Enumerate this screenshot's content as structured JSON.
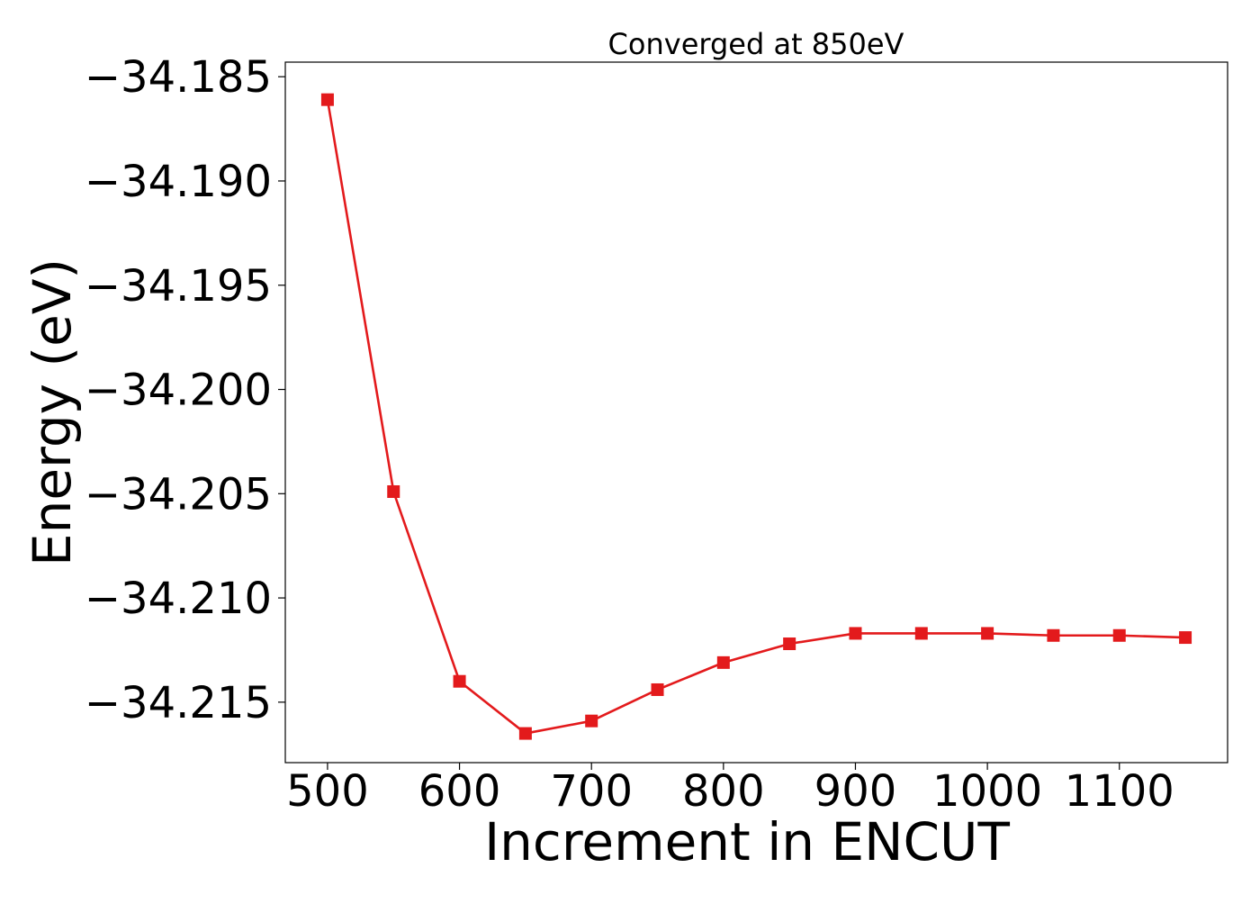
{
  "chart_data": {
    "type": "line",
    "title": "Converged at 850eV",
    "xlabel": "Increment in ENCUT",
    "ylabel": "Energy (eV)",
    "xlim": [
      468,
      1182
    ],
    "ylim": [
      -34.2179,
      -34.1843
    ],
    "x_ticks": [
      500,
      600,
      700,
      800,
      900,
      1000,
      1100
    ],
    "x_tick_labels": [
      "500",
      "600",
      "700",
      "800",
      "900",
      "1000",
      "1100"
    ],
    "y_ticks": [
      -34.185,
      -34.19,
      -34.195,
      -34.2,
      -34.205,
      -34.21,
      -34.215
    ],
    "y_tick_labels": [
      "−34.185",
      "−34.190",
      "−34.195",
      "−34.200",
      "−34.205",
      "−34.210",
      "−34.215"
    ],
    "grid": false,
    "legend": "none",
    "series": [
      {
        "color": "#e31a1c",
        "marker": "square",
        "x": [
          500,
          550,
          600,
          650,
          700,
          750,
          800,
          850,
          900,
          950,
          1000,
          1050,
          1100,
          1150
        ],
        "y": [
          -34.1861,
          -34.2049,
          -34.214,
          -34.2165,
          -34.2159,
          -34.2144,
          -34.2131,
          -34.2122,
          -34.2117,
          -34.2117,
          -34.2117,
          -34.2118,
          -34.2118,
          -34.2119
        ]
      }
    ]
  }
}
